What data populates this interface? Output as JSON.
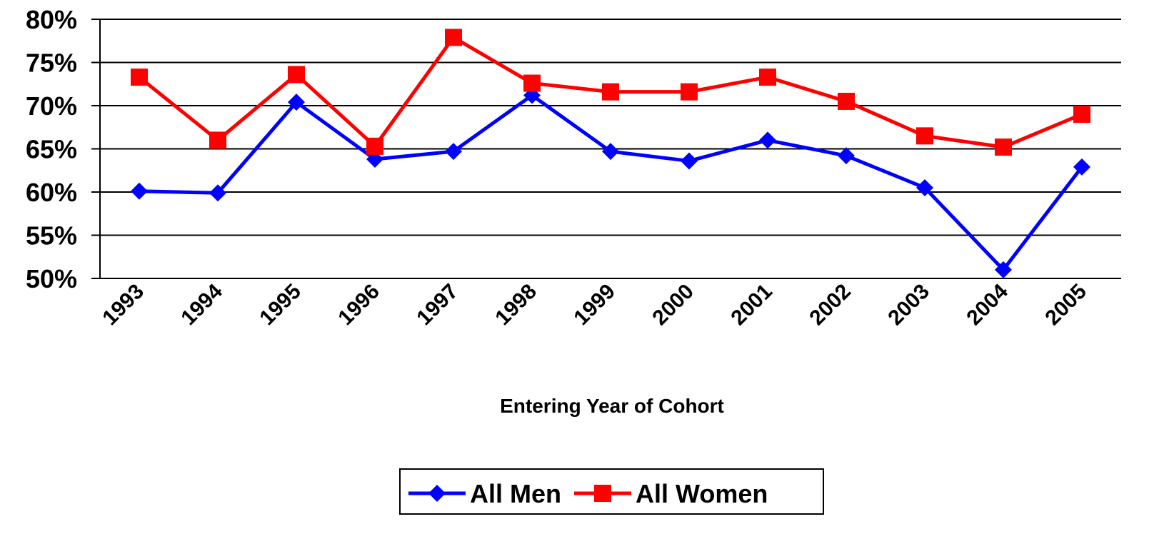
{
  "chart_data": {
    "type": "line",
    "x_label": "Entering Year of Cohort",
    "categories": [
      "1993",
      "1994",
      "1995",
      "1996",
      "1997",
      "1998",
      "1999",
      "2000",
      "2001",
      "2002",
      "2003",
      "2004",
      "2005"
    ],
    "series": [
      {
        "name": "All Men",
        "color": "#0000ff",
        "marker": "diamond",
        "values": [
          60.1,
          59.9,
          70.4,
          63.8,
          64.7,
          71.2,
          64.7,
          63.6,
          66.0,
          64.2,
          60.5,
          51.0,
          62.9
        ]
      },
      {
        "name": "All Women",
        "color": "#ff0000",
        "marker": "square",
        "values": [
          73.3,
          66.0,
          73.6,
          65.3,
          77.9,
          72.6,
          71.6,
          71.6,
          73.3,
          70.5,
          66.5,
          65.2,
          69.0
        ]
      }
    ],
    "ylim": [
      50,
      80
    ],
    "yticks": [
      {
        "value": 50,
        "label": "50%"
      },
      {
        "value": 55,
        "label": "55%"
      },
      {
        "value": 60,
        "label": "60%"
      },
      {
        "value": 65,
        "label": "65%"
      },
      {
        "value": 70,
        "label": "70%"
      },
      {
        "value": 75,
        "label": "75%"
      },
      {
        "value": 80,
        "label": "80%"
      }
    ],
    "grid": true,
    "legend": "bottom"
  }
}
